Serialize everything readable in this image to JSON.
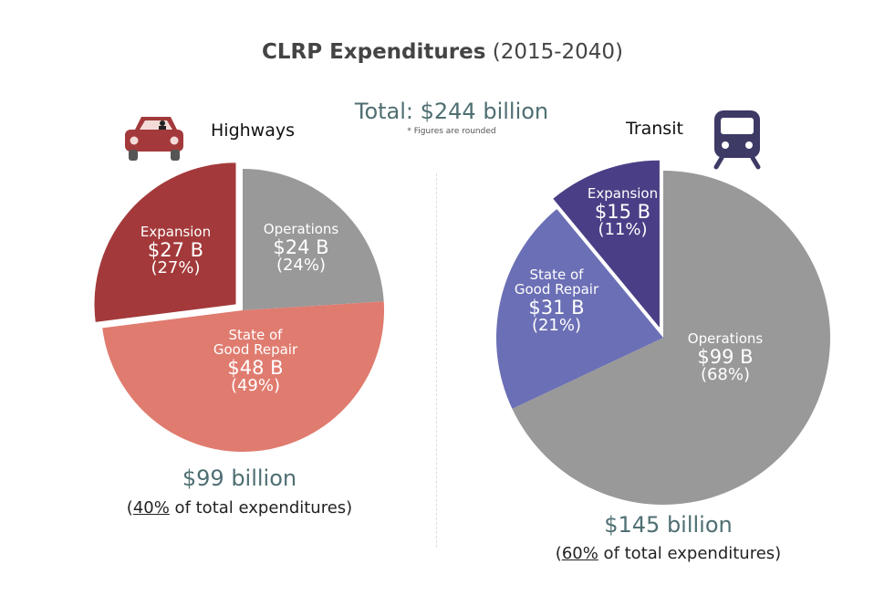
{
  "title": {
    "bold": "CLRP Expenditures",
    "rest": "(2015-2040)"
  },
  "total": "Total: $244 billion",
  "note": "* Figures are rounded",
  "chart_data": [
    {
      "type": "pie",
      "title": "Highways",
      "icon": "car-icon",
      "slices": [
        {
          "name": "Operations",
          "label": "$24 B",
          "percent": 24,
          "value": 24,
          "color": "#999999"
        },
        {
          "name": "State of Good Repair",
          "label": "$48 B",
          "percent": 49,
          "value": 48,
          "color": "#e07b6f"
        },
        {
          "name": "Expansion",
          "label": "$27 B",
          "percent": 27,
          "value": 27,
          "color": "#a3393a",
          "exploded": true
        }
      ],
      "summary": "$99 billion",
      "share": "40%",
      "share_suffix": " of total expenditures)"
    },
    {
      "type": "pie",
      "title": "Transit",
      "icon": "train-icon",
      "slices": [
        {
          "name": "Operations",
          "label": "$99 B",
          "percent": 68,
          "value": 99,
          "color": "#999999"
        },
        {
          "name": "State of Good Repair",
          "label": "$31 B",
          "percent": 21,
          "value": 31,
          "color": "#6b6fb5"
        },
        {
          "name": "Expansion",
          "label": "$15 B",
          "percent": 11,
          "value": 15,
          "color": "#4a3f86",
          "exploded": true
        }
      ],
      "summary": "$145 billion",
      "share": "60%",
      "share_suffix": " of total expenditures)"
    }
  ]
}
